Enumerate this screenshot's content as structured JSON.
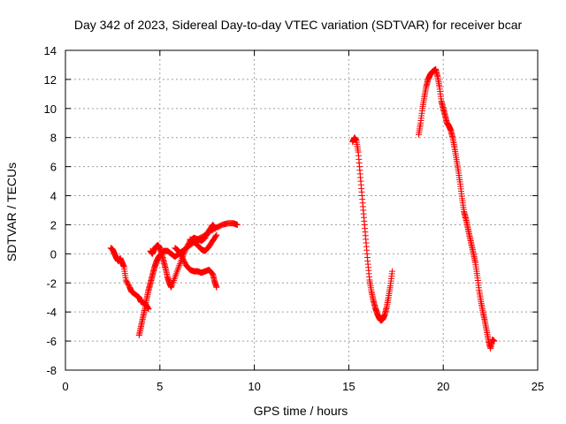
{
  "chart_data": {
    "type": "scatter",
    "title": "Day 342 of 2023, Sidereal Day-to-day VTEC variation (SDTVAR) for receiver bcar",
    "xlabel": "GPS time / hours",
    "ylabel": "SDTVAR / TECUs",
    "xlim": [
      0,
      25
    ],
    "ylim": [
      -8,
      14
    ],
    "xticks": [
      "0",
      "5",
      "10",
      "15",
      "20",
      "25"
    ],
    "yticks": [
      "-8",
      "-6",
      "-4",
      "-2",
      "0",
      "2",
      "4",
      "6",
      "8",
      "10",
      "12",
      "14"
    ],
    "grid": true,
    "marker": "plus",
    "color": "#ff0000",
    "series": [
      {
        "points": [
          [
            2.4,
            0.4
          ],
          [
            2.5,
            0.3
          ],
          [
            2.6,
            0.0
          ],
          [
            2.7,
            -0.3
          ],
          [
            2.8,
            -0.5
          ],
          [
            2.9,
            -0.3
          ],
          [
            3.0,
            -0.6
          ],
          [
            3.1,
            -0.9
          ],
          [
            3.2,
            -1.8
          ],
          [
            3.4,
            -2.3
          ],
          [
            3.5,
            -2.6
          ],
          [
            3.7,
            -2.8
          ],
          [
            3.9,
            -3.0
          ],
          [
            4.0,
            -3.3
          ],
          [
            4.2,
            -3.4
          ],
          [
            4.3,
            -3.6
          ],
          [
            4.4,
            -3.8
          ]
        ]
      },
      {
        "points": [
          [
            3.9,
            -5.6
          ],
          [
            4.0,
            -5.0
          ],
          [
            4.1,
            -4.4
          ],
          [
            4.2,
            -3.8
          ],
          [
            4.3,
            -3.1
          ],
          [
            4.4,
            -2.5
          ],
          [
            4.5,
            -2.0
          ],
          [
            4.6,
            -1.5
          ],
          [
            4.7,
            -1.0
          ],
          [
            4.8,
            -0.6
          ],
          [
            4.9,
            -0.3
          ],
          [
            5.0,
            -0.1
          ],
          [
            5.2,
            0.2
          ],
          [
            5.4,
            0.2
          ],
          [
            5.6,
            0.0
          ],
          [
            5.8,
            -0.2
          ],
          [
            6.0,
            0.0
          ],
          [
            6.2,
            0.2
          ],
          [
            6.5,
            0.5
          ],
          [
            6.8,
            0.8
          ],
          [
            7.0,
            1.0
          ],
          [
            7.3,
            1.2
          ],
          [
            7.6,
            1.5
          ],
          [
            8.0,
            1.8
          ],
          [
            8.3,
            2.0
          ],
          [
            8.6,
            2.1
          ],
          [
            8.9,
            2.1
          ],
          [
            9.1,
            2.0
          ]
        ]
      },
      {
        "points": [
          [
            4.5,
            0.2
          ],
          [
            4.6,
            0.0
          ],
          [
            4.7,
            0.3
          ],
          [
            4.8,
            0.5
          ],
          [
            4.9,
            0.6
          ],
          [
            5.0,
            0.4
          ],
          [
            5.1,
            0.0
          ],
          [
            5.2,
            -0.5
          ],
          [
            5.3,
            -1.0
          ],
          [
            5.4,
            -1.6
          ],
          [
            5.5,
            -2.0
          ],
          [
            5.6,
            -2.3
          ],
          [
            5.8,
            -1.6
          ],
          [
            6.0,
            -0.9
          ],
          [
            6.2,
            -0.2
          ],
          [
            6.4,
            0.4
          ],
          [
            6.6,
            0.9
          ],
          [
            6.8,
            1.1
          ],
          [
            7.0,
            1.0
          ],
          [
            7.2,
            0.9
          ],
          [
            7.4,
            1.1
          ],
          [
            7.6,
            1.6
          ],
          [
            7.8,
            2.0
          ],
          [
            7.9,
            1.8
          ]
        ]
      },
      {
        "points": [
          [
            5.8,
            0.4
          ],
          [
            6.0,
            0.2
          ],
          [
            6.2,
            -0.3
          ],
          [
            6.4,
            -0.8
          ],
          [
            6.6,
            -1.1
          ],
          [
            6.8,
            -1.2
          ],
          [
            7.0,
            -1.2
          ],
          [
            7.2,
            -1.3
          ],
          [
            7.4,
            -1.2
          ],
          [
            7.6,
            -1.1
          ],
          [
            7.8,
            -1.4
          ],
          [
            7.9,
            -1.9
          ],
          [
            8.0,
            -2.3
          ]
        ]
      },
      {
        "points": [
          [
            6.6,
            1.0
          ],
          [
            6.8,
            0.8
          ],
          [
            7.0,
            0.6
          ],
          [
            7.2,
            0.3
          ],
          [
            7.4,
            0.2
          ],
          [
            7.6,
            0.5
          ],
          [
            7.8,
            0.9
          ],
          [
            8.0,
            1.3
          ]
        ]
      },
      {
        "points": [
          [
            15.2,
            7.7
          ],
          [
            15.3,
            8.0
          ],
          [
            15.4,
            7.8
          ],
          [
            15.5,
            7.0
          ],
          [
            15.6,
            5.5
          ],
          [
            15.7,
            4.0
          ],
          [
            15.8,
            2.5
          ],
          [
            15.9,
            1.0
          ],
          [
            16.0,
            -0.5
          ],
          [
            16.1,
            -1.8
          ],
          [
            16.2,
            -2.6
          ],
          [
            16.3,
            -3.2
          ],
          [
            16.4,
            -3.7
          ],
          [
            16.5,
            -4.1
          ],
          [
            16.6,
            -4.4
          ],
          [
            16.7,
            -4.6
          ],
          [
            16.8,
            -4.5
          ],
          [
            16.9,
            -4.2
          ],
          [
            17.0,
            -3.7
          ],
          [
            17.1,
            -3.0
          ],
          [
            17.2,
            -2.2
          ],
          [
            17.3,
            -1.2
          ]
        ]
      },
      {
        "points": [
          [
            18.7,
            8.2
          ],
          [
            18.8,
            9.0
          ],
          [
            18.9,
            10.0
          ],
          [
            19.0,
            10.8
          ],
          [
            19.1,
            11.5
          ],
          [
            19.2,
            12.0
          ],
          [
            19.3,
            12.3
          ],
          [
            19.4,
            12.5
          ],
          [
            19.5,
            12.6
          ],
          [
            19.6,
            12.7
          ],
          [
            19.7,
            12.2
          ],
          [
            19.8,
            11.5
          ],
          [
            19.9,
            10.5
          ],
          [
            20.0,
            10.0
          ],
          [
            20.1,
            9.5
          ],
          [
            20.2,
            9.0
          ],
          [
            20.3,
            8.8
          ],
          [
            20.4,
            8.5
          ],
          [
            20.5,
            8.0
          ],
          [
            20.6,
            7.3
          ],
          [
            20.7,
            6.5
          ],
          [
            20.8,
            5.7
          ],
          [
            20.9,
            4.8
          ],
          [
            21.0,
            3.8
          ],
          [
            21.1,
            2.9
          ],
          [
            21.2,
            2.4
          ],
          [
            21.3,
            1.8
          ],
          [
            21.4,
            1.2
          ],
          [
            21.5,
            0.6
          ],
          [
            21.6,
            0.0
          ],
          [
            21.7,
            -0.6
          ],
          [
            21.8,
            -1.5
          ],
          [
            21.9,
            -2.5
          ],
          [
            22.0,
            -3.3
          ],
          [
            22.1,
            -4.0
          ],
          [
            22.2,
            -4.6
          ],
          [
            22.3,
            -5.3
          ],
          [
            22.4,
            -6.0
          ],
          [
            22.5,
            -6.5
          ],
          [
            22.6,
            -5.9
          ],
          [
            22.7,
            -6.0
          ]
        ]
      }
    ]
  }
}
